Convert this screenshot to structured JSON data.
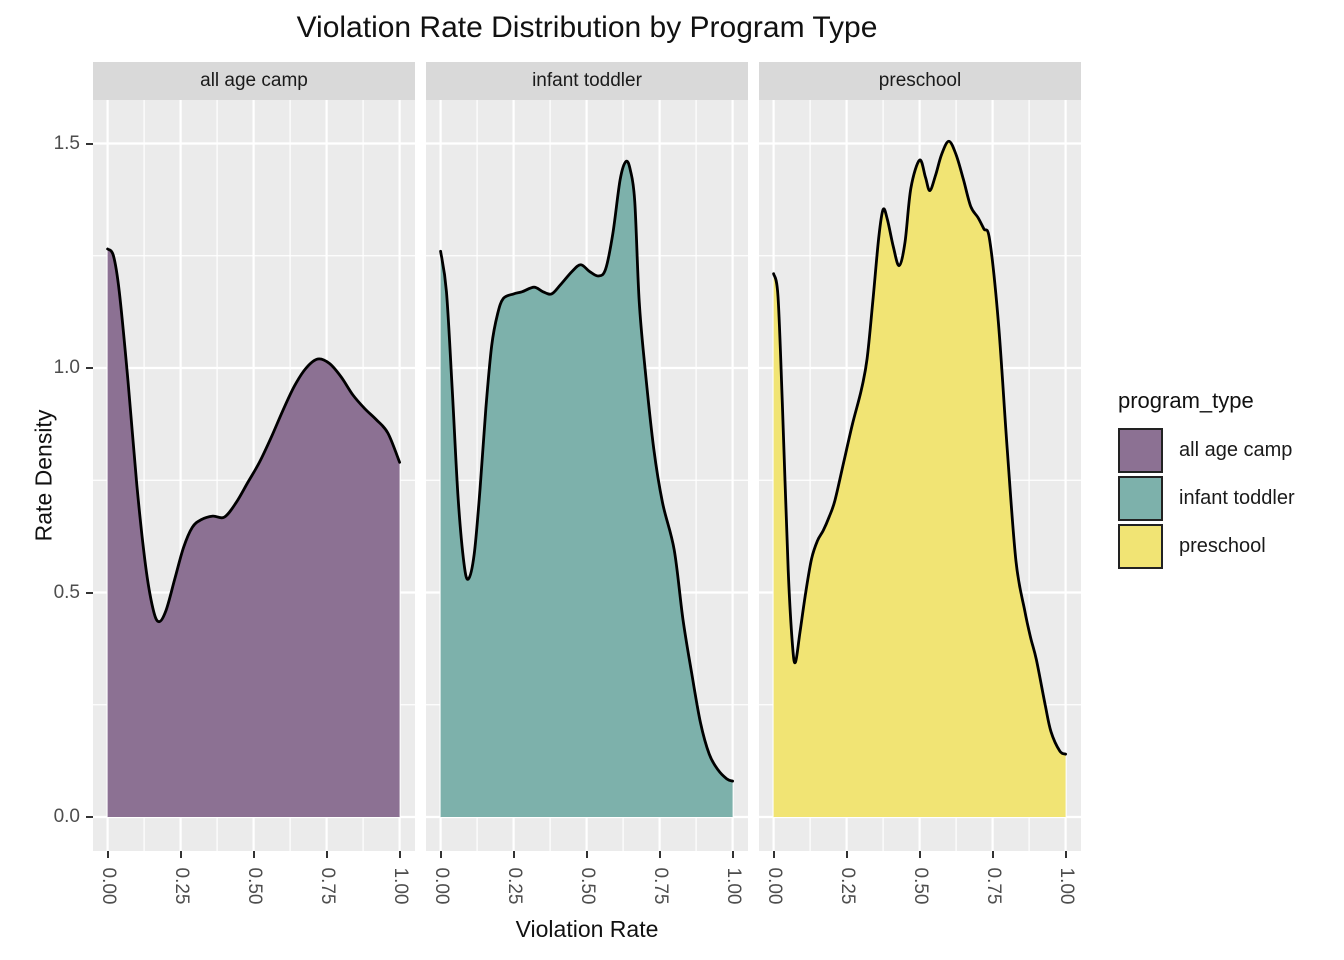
{
  "title": "Violation Rate Distribution by Program Type",
  "axes": {
    "x_title": "Violation Rate",
    "y_title": "Rate Density",
    "x_tick_labels": [
      "0.00",
      "0.25",
      "0.50",
      "0.75",
      "1.00"
    ],
    "x_tick_values": [
      0,
      0.25,
      0.5,
      0.75,
      1.0
    ],
    "x_minor_values": [
      0.125,
      0.375,
      0.625,
      0.875
    ],
    "y_tick_labels": [
      "0.0",
      "0.5",
      "1.0",
      "1.5"
    ],
    "y_tick_values": [
      0,
      0.5,
      1.0,
      1.5
    ],
    "y_minor_values": [
      0.25,
      0.75,
      1.25
    ]
  },
  "legend": {
    "title": "program_type",
    "items": [
      {
        "label": "all age camp",
        "color": "#8c7193"
      },
      {
        "label": "infant toddler",
        "color": "#7db1ab"
      },
      {
        "label": "preschool",
        "color": "#f1e474"
      }
    ]
  },
  "colors": {
    "panel_background": "#ebebeb",
    "strip_background": "#d9d9d9",
    "gridline": "#ffffff",
    "curve_stroke": "#000000",
    "axis_text": "#4d4d4d"
  },
  "chart_data": {
    "type": "area",
    "subtype": "faceted density plot",
    "title": "Violation Rate Distribution by Program Type",
    "xlabel": "Violation Rate",
    "ylabel": "Rate Density",
    "xlim": [
      -0.05,
      1.05
    ],
    "ylim": [
      -0.076,
      1.597
    ],
    "grid": "white major+minor on gray panel",
    "legend_position": "right",
    "facets": [
      {
        "label": "all age camp",
        "fill": "#8c7193",
        "points": [
          [
            0,
            1.265
          ],
          [
            0.02,
            1.25
          ],
          [
            0.04,
            1.17
          ],
          [
            0.07,
            0.97
          ],
          [
            0.1,
            0.74
          ],
          [
            0.13,
            0.56
          ],
          [
            0.155,
            0.465
          ],
          [
            0.175,
            0.435
          ],
          [
            0.2,
            0.46
          ],
          [
            0.23,
            0.53
          ],
          [
            0.26,
            0.6
          ],
          [
            0.29,
            0.645
          ],
          [
            0.32,
            0.662
          ],
          [
            0.36,
            0.67
          ],
          [
            0.4,
            0.668
          ],
          [
            0.44,
            0.7
          ],
          [
            0.48,
            0.745
          ],
          [
            0.52,
            0.79
          ],
          [
            0.56,
            0.845
          ],
          [
            0.6,
            0.905
          ],
          [
            0.64,
            0.96
          ],
          [
            0.68,
            1.0
          ],
          [
            0.72,
            1.02
          ],
          [
            0.76,
            1.01
          ],
          [
            0.8,
            0.98
          ],
          [
            0.84,
            0.94
          ],
          [
            0.88,
            0.91
          ],
          [
            0.92,
            0.885
          ],
          [
            0.96,
            0.855
          ],
          [
            1.0,
            0.79
          ]
        ]
      },
      {
        "label": "infant toddler",
        "fill": "#7db1ab",
        "points": [
          [
            0,
            1.26
          ],
          [
            0.02,
            1.17
          ],
          [
            0.04,
            0.95
          ],
          [
            0.06,
            0.71
          ],
          [
            0.08,
            0.565
          ],
          [
            0.095,
            0.53
          ],
          [
            0.115,
            0.585
          ],
          [
            0.135,
            0.73
          ],
          [
            0.155,
            0.91
          ],
          [
            0.175,
            1.05
          ],
          [
            0.195,
            1.12
          ],
          [
            0.215,
            1.155
          ],
          [
            0.25,
            1.165
          ],
          [
            0.28,
            1.17
          ],
          [
            0.32,
            1.18
          ],
          [
            0.35,
            1.17
          ],
          [
            0.38,
            1.165
          ],
          [
            0.41,
            1.185
          ],
          [
            0.45,
            1.215
          ],
          [
            0.48,
            1.23
          ],
          [
            0.51,
            1.215
          ],
          [
            0.54,
            1.205
          ],
          [
            0.565,
            1.22
          ],
          [
            0.59,
            1.3
          ],
          [
            0.615,
            1.42
          ],
          [
            0.635,
            1.46
          ],
          [
            0.65,
            1.44
          ],
          [
            0.665,
            1.37
          ],
          [
            0.68,
            1.15
          ],
          [
            0.7,
            1.0
          ],
          [
            0.73,
            0.82
          ],
          [
            0.76,
            0.7
          ],
          [
            0.8,
            0.595
          ],
          [
            0.83,
            0.44
          ],
          [
            0.86,
            0.32
          ],
          [
            0.89,
            0.21
          ],
          [
            0.92,
            0.14
          ],
          [
            0.95,
            0.105
          ],
          [
            0.98,
            0.085
          ],
          [
            1.0,
            0.08
          ]
        ]
      },
      {
        "label": "preschool",
        "fill": "#f1e474",
        "points": [
          [
            0,
            1.21
          ],
          [
            0.015,
            1.16
          ],
          [
            0.03,
            0.92
          ],
          [
            0.05,
            0.55
          ],
          [
            0.065,
            0.38
          ],
          [
            0.075,
            0.345
          ],
          [
            0.09,
            0.41
          ],
          [
            0.11,
            0.5
          ],
          [
            0.13,
            0.575
          ],
          [
            0.15,
            0.615
          ],
          [
            0.17,
            0.638
          ],
          [
            0.19,
            0.668
          ],
          [
            0.21,
            0.705
          ],
          [
            0.24,
            0.79
          ],
          [
            0.27,
            0.875
          ],
          [
            0.3,
            0.95
          ],
          [
            0.32,
            1.02
          ],
          [
            0.34,
            1.15
          ],
          [
            0.36,
            1.29
          ],
          [
            0.375,
            1.353
          ],
          [
            0.39,
            1.33
          ],
          [
            0.41,
            1.27
          ],
          [
            0.43,
            1.228
          ],
          [
            0.45,
            1.28
          ],
          [
            0.47,
            1.4
          ],
          [
            0.5,
            1.463
          ],
          [
            0.52,
            1.425
          ],
          [
            0.535,
            1.395
          ],
          [
            0.555,
            1.43
          ],
          [
            0.575,
            1.475
          ],
          [
            0.6,
            1.505
          ],
          [
            0.625,
            1.475
          ],
          [
            0.65,
            1.42
          ],
          [
            0.675,
            1.36
          ],
          [
            0.7,
            1.335
          ],
          [
            0.72,
            1.31
          ],
          [
            0.74,
            1.285
          ],
          [
            0.77,
            1.1
          ],
          [
            0.8,
            0.82
          ],
          [
            0.83,
            0.57
          ],
          [
            0.86,
            0.46
          ],
          [
            0.88,
            0.4
          ],
          [
            0.9,
            0.35
          ],
          [
            0.93,
            0.25
          ],
          [
            0.95,
            0.19
          ],
          [
            0.98,
            0.147
          ],
          [
            1.0,
            0.14
          ]
        ]
      }
    ]
  }
}
